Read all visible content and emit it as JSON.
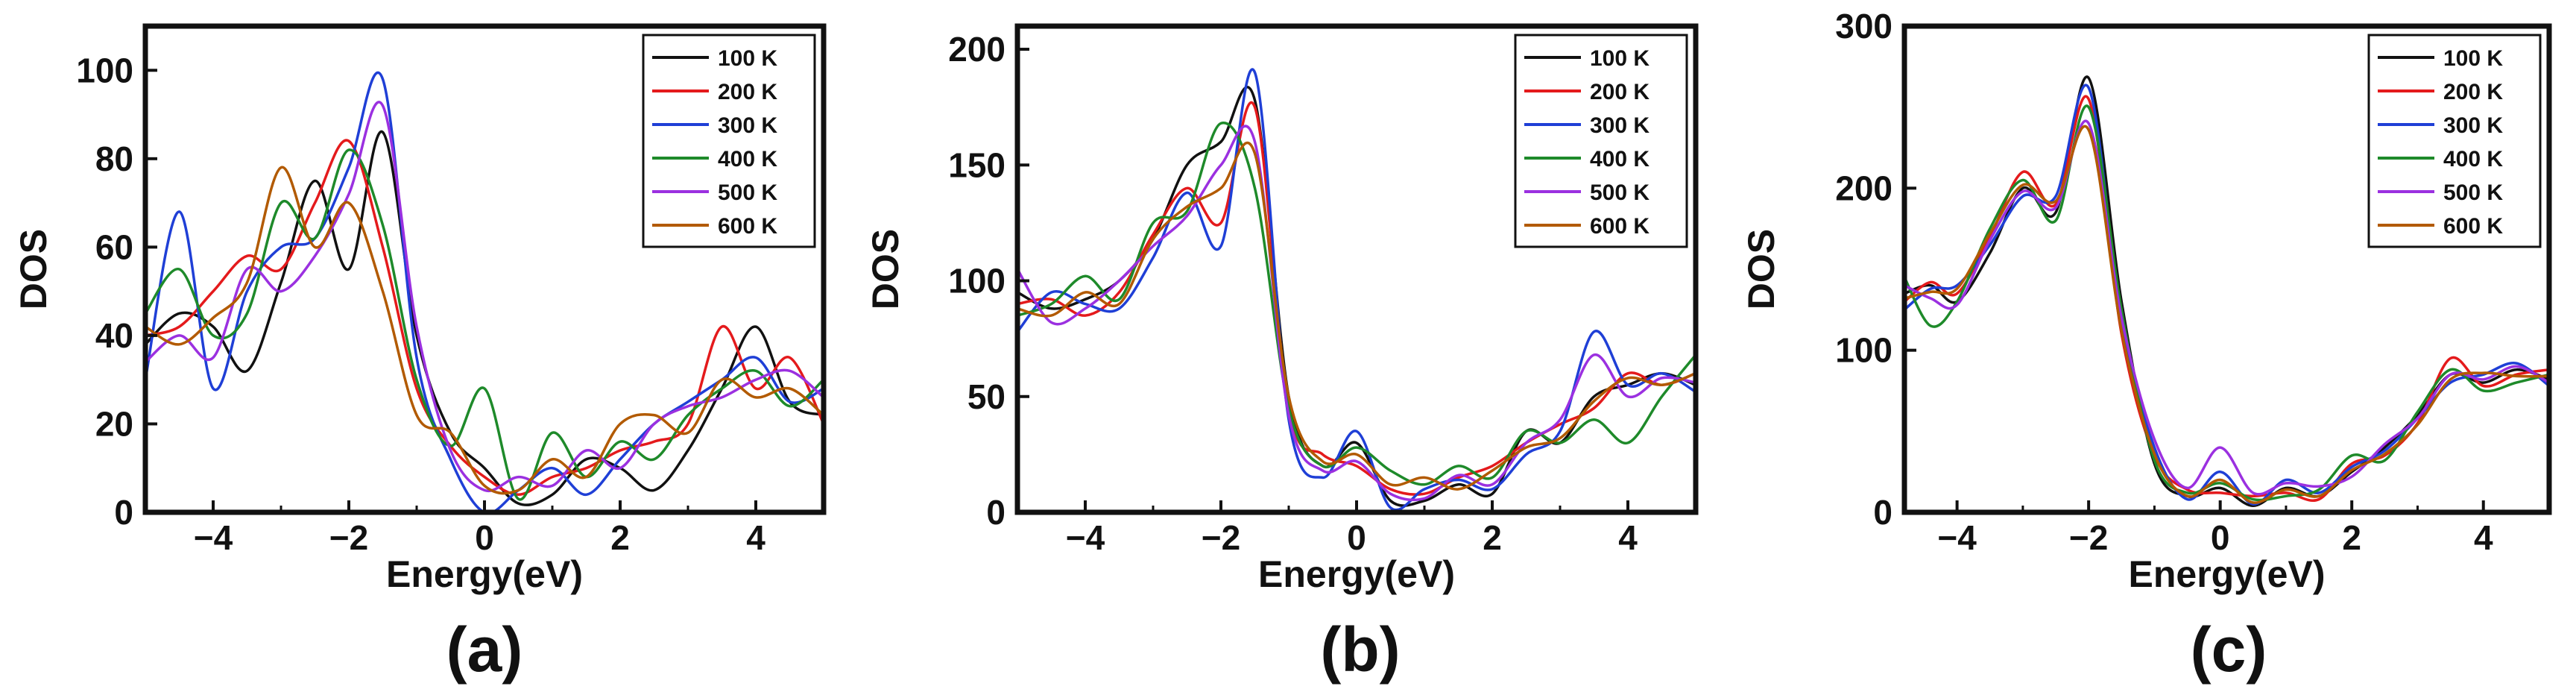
{
  "colors": {
    "100 K": "#111111",
    "200 K": "#e41a1c",
    "300 K": "#1f3fd6",
    "400 K": "#1e8a2a",
    "500 K": "#9b30e0",
    "600 K": "#b25a00"
  },
  "chart_data": [
    {
      "type": "line",
      "panel_label": "(a)",
      "xlabel": "Energy(eV)",
      "ylabel": "DOS",
      "xlim": [
        -5,
        5
      ],
      "ylim": [
        0,
        110
      ],
      "xticks": [
        -4,
        -2,
        0,
        2,
        4
      ],
      "yticks": [
        0,
        20,
        40,
        60,
        80,
        100
      ],
      "legend": [
        "100 K",
        "200 K",
        "300 K",
        "400 K",
        "500 K",
        "600 K"
      ],
      "legend_position": "top-right",
      "series": [
        {
          "name": "100 K",
          "x": [
            -5,
            -4.5,
            -4,
            -3.5,
            -3,
            -2.5,
            -2,
            -1.5,
            -1,
            -0.5,
            0,
            0.5,
            1,
            1.5,
            2,
            2.5,
            3,
            3.5,
            4,
            4.5,
            5
          ],
          "y": [
            38,
            45,
            42,
            32,
            52,
            75,
            55,
            86,
            40,
            18,
            10,
            2,
            4,
            12,
            10,
            5,
            14,
            28,
            42,
            25,
            22
          ]
        },
        {
          "name": "200 K",
          "x": [
            -5,
            -4.5,
            -4,
            -3.5,
            -3,
            -2.5,
            -2,
            -1.5,
            -1,
            -0.5,
            0,
            0.5,
            1,
            1.5,
            2,
            2.5,
            3,
            3.5,
            4,
            4.5,
            5
          ],
          "y": [
            40,
            42,
            50,
            58,
            55,
            70,
            84,
            60,
            28,
            15,
            8,
            4,
            8,
            10,
            14,
            16,
            20,
            42,
            28,
            35,
            20
          ]
        },
        {
          "name": "300 K",
          "x": [
            -5,
            -4.5,
            -4,
            -3.5,
            -3,
            -2.5,
            -2,
            -1.5,
            -1,
            -0.5,
            0,
            0.5,
            1,
            1.5,
            2,
            2.5,
            3,
            3.5,
            4,
            4.5,
            5
          ],
          "y": [
            30,
            68,
            28,
            50,
            60,
            62,
            78,
            98,
            35,
            12,
            0,
            5,
            10,
            4,
            12,
            20,
            25,
            30,
            35,
            25,
            28
          ]
        },
        {
          "name": "400 K",
          "x": [
            -5,
            -4.5,
            -4,
            -3.5,
            -3,
            -2.5,
            -2,
            -1.5,
            -1,
            -0.5,
            0,
            0.5,
            1,
            1.5,
            2,
            2.5,
            3,
            3.5,
            4,
            4.5,
            5
          ],
          "y": [
            45,
            55,
            40,
            45,
            70,
            62,
            82,
            65,
            30,
            15,
            28,
            3,
            18,
            8,
            16,
            12,
            22,
            28,
            32,
            24,
            30
          ]
        },
        {
          "name": "500 K",
          "x": [
            -5,
            -4.5,
            -4,
            -3.5,
            -3,
            -2.5,
            -2,
            -1.5,
            -1,
            -0.5,
            0,
            0.5,
            1,
            1.5,
            2,
            2.5,
            3,
            3.5,
            4,
            4.5,
            5
          ],
          "y": [
            34,
            40,
            35,
            55,
            50,
            58,
            72,
            92,
            42,
            14,
            5,
            8,
            6,
            14,
            10,
            20,
            24,
            26,
            30,
            32,
            26
          ]
        },
        {
          "name": "600 K",
          "x": [
            -5,
            -4.5,
            -4,
            -3.5,
            -3,
            -2.5,
            -2,
            -1.5,
            -1,
            -0.5,
            0,
            0.5,
            1,
            1.5,
            2,
            2.5,
            3,
            3.5,
            4,
            4.5,
            5
          ],
          "y": [
            42,
            38,
            44,
            52,
            78,
            60,
            70,
            50,
            22,
            18,
            6,
            5,
            12,
            8,
            20,
            22,
            18,
            30,
            26,
            28,
            22
          ]
        }
      ]
    },
    {
      "type": "line",
      "panel_label": "(b)",
      "xlabel": "Energy(eV)",
      "ylabel": "DOS",
      "xlim": [
        -5,
        5
      ],
      "ylim": [
        0,
        210
      ],
      "xticks": [
        -4,
        -2,
        0,
        2,
        4
      ],
      "yticks": [
        0,
        50,
        100,
        150,
        200
      ],
      "legend": [
        "100 K",
        "200 K",
        "300 K",
        "400 K",
        "500 K",
        "600 K"
      ],
      "legend_position": "top-right",
      "series": [
        {
          "name": "100 K",
          "x": [
            -5,
            -4.5,
            -4,
            -3.5,
            -3,
            -2.5,
            -2,
            -1.5,
            -1,
            -0.5,
            0,
            0.5,
            1,
            1.5,
            2,
            2.5,
            3,
            3.5,
            4,
            4.5,
            5
          ],
          "y": [
            95,
            88,
            92,
            100,
            118,
            150,
            160,
            178,
            50,
            20,
            30,
            5,
            5,
            12,
            8,
            35,
            30,
            50,
            55,
            60,
            55
          ]
        },
        {
          "name": "200 K",
          "x": [
            -5,
            -4.5,
            -4,
            -3.5,
            -3,
            -2.5,
            -2,
            -1.5,
            -1,
            -0.5,
            0,
            0.5,
            1,
            1.5,
            2,
            2.5,
            3,
            3.5,
            4,
            4.5,
            5
          ],
          "y": [
            90,
            92,
            85,
            95,
            120,
            140,
            125,
            175,
            45,
            25,
            20,
            10,
            8,
            15,
            20,
            30,
            38,
            45,
            60,
            55,
            60
          ]
        },
        {
          "name": "300 K",
          "x": [
            -5,
            -4.5,
            -4,
            -3.5,
            -3,
            -2.5,
            -2,
            -1.5,
            -1,
            -0.5,
            0,
            0.5,
            1,
            1.5,
            2,
            2.5,
            3,
            3.5,
            4,
            4.5,
            5
          ],
          "y": [
            78,
            95,
            90,
            88,
            110,
            138,
            115,
            190,
            40,
            15,
            35,
            2,
            10,
            14,
            10,
            25,
            35,
            78,
            55,
            60,
            52
          ]
        },
        {
          "name": "400 K",
          "x": [
            -5,
            -4.5,
            -4,
            -3.5,
            -3,
            -2.5,
            -2,
            -1.5,
            -1,
            -0.5,
            0,
            0.5,
            1,
            1.5,
            2,
            2.5,
            3,
            3.5,
            4,
            4.5,
            5
          ],
          "y": [
            85,
            90,
            102,
            92,
            125,
            130,
            168,
            140,
            45,
            20,
            28,
            18,
            12,
            20,
            15,
            35,
            30,
            40,
            30,
            50,
            68
          ]
        },
        {
          "name": "500 K",
          "x": [
            -5,
            -4.5,
            -4,
            -3.5,
            -3,
            -2.5,
            -2,
            -1.5,
            -1,
            -0.5,
            0,
            0.5,
            1,
            1.5,
            2,
            2.5,
            3,
            3.5,
            4,
            4.5,
            5
          ],
          "y": [
            105,
            82,
            88,
            100,
            115,
            128,
            150,
            160,
            42,
            18,
            22,
            8,
            6,
            16,
            12,
            30,
            40,
            68,
            50,
            58,
            56
          ]
        },
        {
          "name": "600 K",
          "x": [
            -5,
            -4.5,
            -4,
            -3.5,
            -3,
            -2.5,
            -2,
            -1.5,
            -1,
            -0.5,
            0,
            0.5,
            1,
            1.5,
            2,
            2.5,
            3,
            3.5,
            4,
            4.5,
            5
          ],
          "y": [
            88,
            85,
            95,
            90,
            118,
            132,
            140,
            155,
            50,
            22,
            25,
            12,
            15,
            10,
            18,
            28,
            32,
            48,
            58,
            55,
            60
          ]
        }
      ]
    },
    {
      "type": "line",
      "panel_label": "(c)",
      "xlabel": "Energy(eV)",
      "ylabel": "DOS",
      "xlim": [
        -4.8,
        5
      ],
      "ylim": [
        0,
        300
      ],
      "xticks": [
        -4,
        -2,
        0,
        2,
        4
      ],
      "yticks": [
        0,
        100,
        200,
        300
      ],
      "legend": [
        "100 K",
        "200 K",
        "300 K",
        "400 K",
        "500 K",
        "600 K"
      ],
      "legend_position": "top-right",
      "series": [
        {
          "name": "100 K",
          "x": [
            -4.8,
            -4.4,
            -4,
            -3.5,
            -3,
            -2.5,
            -2,
            -1.5,
            -1,
            -0.5,
            0,
            0.5,
            1,
            1.5,
            2,
            2.5,
            3,
            3.5,
            4,
            4.5,
            5
          ],
          "y": [
            135,
            140,
            130,
            160,
            200,
            185,
            268,
            130,
            30,
            10,
            15,
            4,
            15,
            10,
            25,
            40,
            60,
            85,
            80,
            88,
            82
          ]
        },
        {
          "name": "200 K",
          "x": [
            -4.8,
            -4.4,
            -4,
            -3.5,
            -3,
            -2.5,
            -2,
            -1.5,
            -1,
            -0.5,
            0,
            0.5,
            1,
            1.5,
            2,
            2.5,
            3,
            3.5,
            4,
            4.5,
            5
          ],
          "y": [
            130,
            142,
            135,
            170,
            210,
            190,
            255,
            110,
            35,
            14,
            12,
            10,
            12,
            8,
            30,
            35,
            55,
            95,
            78,
            85,
            88
          ]
        },
        {
          "name": "300 K",
          "x": [
            -4.8,
            -4.4,
            -4,
            -3.5,
            -3,
            -2.5,
            -2,
            -1.5,
            -1,
            -0.5,
            0,
            0.5,
            1,
            1.5,
            2,
            2.5,
            3,
            3.5,
            4,
            4.5,
            5
          ],
          "y": [
            125,
            138,
            140,
            165,
            195,
            195,
            262,
            118,
            40,
            8,
            25,
            5,
            20,
            12,
            28,
            38,
            58,
            80,
            85,
            92,
            78
          ]
        },
        {
          "name": "400 K",
          "x": [
            -4.8,
            -4.4,
            -4,
            -3.5,
            -3,
            -2.5,
            -2,
            -1.5,
            -1,
            -0.5,
            0,
            0.5,
            1,
            1.5,
            2,
            2.5,
            3,
            3.5,
            4,
            4.5,
            5
          ],
          "y": [
            145,
            115,
            130,
            175,
            205,
            180,
            250,
            125,
            32,
            12,
            18,
            8,
            10,
            14,
            35,
            32,
            62,
            88,
            75,
            80,
            85
          ]
        },
        {
          "name": "500 K",
          "x": [
            -4.8,
            -4.4,
            -4,
            -3.5,
            -3,
            -2.5,
            -2,
            -1.5,
            -1,
            -0.5,
            0,
            0.5,
            1,
            1.5,
            2,
            2.5,
            3,
            3.5,
            4,
            4.5,
            5
          ],
          "y": [
            140,
            132,
            128,
            168,
            198,
            188,
            240,
            120,
            45,
            15,
            40,
            12,
            18,
            16,
            22,
            42,
            58,
            85,
            82,
            90,
            80
          ]
        },
        {
          "name": "600 K",
          "x": [
            -4.8,
            -4.4,
            -4,
            -3.5,
            -3,
            -2.5,
            -2,
            -1.5,
            -1,
            -0.5,
            0,
            0.5,
            1,
            1.5,
            2,
            2.5,
            3,
            3.5,
            4,
            4.5,
            5
          ],
          "y": [
            132,
            136,
            138,
            172,
            202,
            192,
            236,
            112,
            36,
            10,
            20,
            6,
            14,
            10,
            26,
            36,
            54,
            82,
            86,
            84,
            84
          ]
        }
      ]
    }
  ]
}
